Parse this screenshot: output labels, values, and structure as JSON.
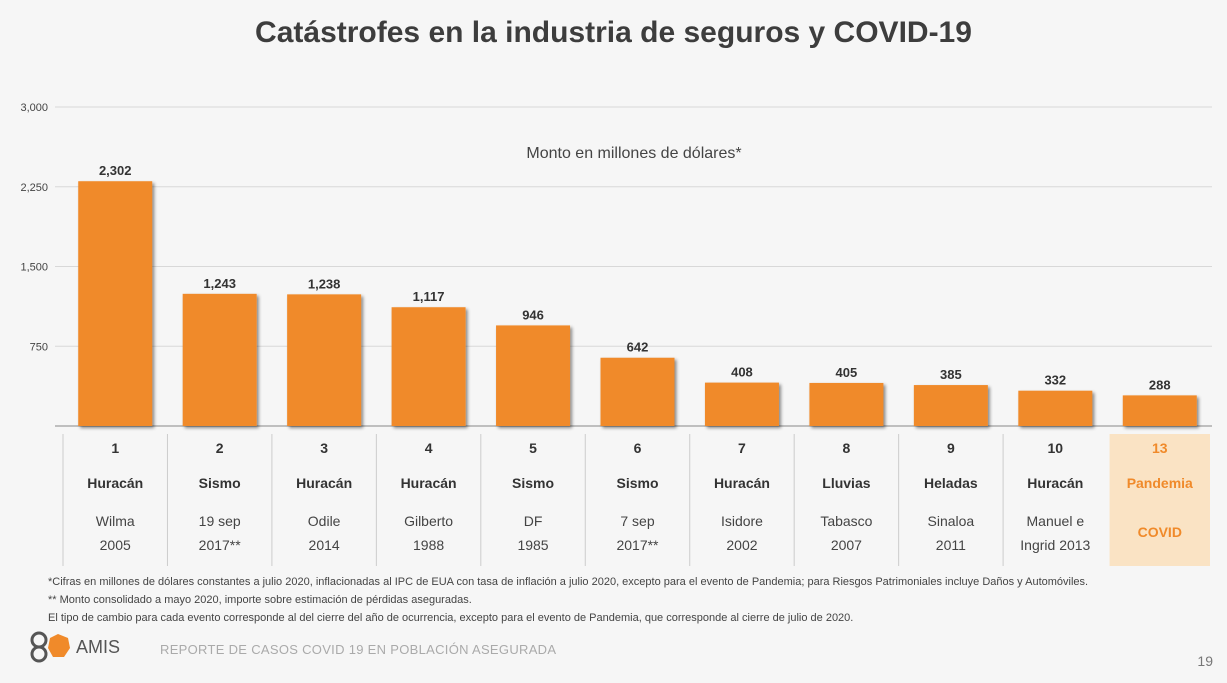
{
  "chart_data": {
    "type": "bar",
    "title": "Catástrofes en la industria de seguros y COVID-19",
    "subtitle": "Monto en millones de dólares*",
    "ylim": [
      0,
      3000
    ],
    "yticks": [
      "3,000",
      "2,250",
      "1,500",
      "750"
    ],
    "ytick_values": [
      3000,
      2250,
      1500,
      750
    ],
    "grid": true,
    "bar_color": "#f08a2a",
    "highlight_color": "#fae3c4",
    "highlight_text_color": "#f08a2a",
    "categories": [
      {
        "rank": "1",
        "type": "Huracán",
        "name": [
          "Wilma",
          "2005"
        ]
      },
      {
        "rank": "2",
        "type": "Sismo",
        "name": [
          "19 sep",
          "2017**"
        ]
      },
      {
        "rank": "3",
        "type": "Huracán",
        "name": [
          "Odile",
          "2014"
        ]
      },
      {
        "rank": "4",
        "type": "Huracán",
        "name": [
          "Gilberto",
          "1988"
        ]
      },
      {
        "rank": "5",
        "type": "Sismo",
        "name": [
          "DF",
          "1985"
        ]
      },
      {
        "rank": "6",
        "type": "Sismo",
        "name": [
          "7 sep",
          "2017**"
        ]
      },
      {
        "rank": "7",
        "type": "Huracán",
        "name": [
          "Isidore",
          "2002"
        ]
      },
      {
        "rank": "8",
        "type": "Lluvias",
        "name": [
          "Tabasco",
          "2007"
        ]
      },
      {
        "rank": "9",
        "type": "Heladas",
        "name": [
          "Sinaloa",
          "2011"
        ]
      },
      {
        "rank": "10",
        "type": "Huracán",
        "name": [
          "Manuel e",
          "Ingrid 2013"
        ]
      },
      {
        "rank": "13",
        "type": "Pandemia",
        "name": [
          "COVID"
        ],
        "highlight": true
      }
    ],
    "values": [
      2302,
      1243,
      1238,
      1117,
      946,
      642,
      408,
      405,
      385,
      332,
      288
    ],
    "value_labels": [
      "2,302",
      "1,243",
      "1,238",
      "1,117",
      "946",
      "642",
      "408",
      "405",
      "385",
      "332",
      "288"
    ]
  },
  "footnotes": [
    "*Cifras en millones de dólares constantes a julio 2020, inflacionadas al IPC de EUA con tasa de inflación a julio 2020, excepto para el evento de Pandemia; para Riesgos Patrimoniales incluye Daños y Automóviles.",
    "** Monto consolidado a mayo 2020, importe sobre estimación de pérdidas aseguradas.",
    "El tipo de cambio para cada evento corresponde al del cierre del año de ocurrencia, excepto para el evento de Pandemia, que corresponde al cierre de julio de 2020."
  ],
  "logo_text": "AMIS",
  "report_title": "REPORTE DE CASOS COVID 19 EN POBLACIÓN ASEGURADA",
  "page_number": "19"
}
